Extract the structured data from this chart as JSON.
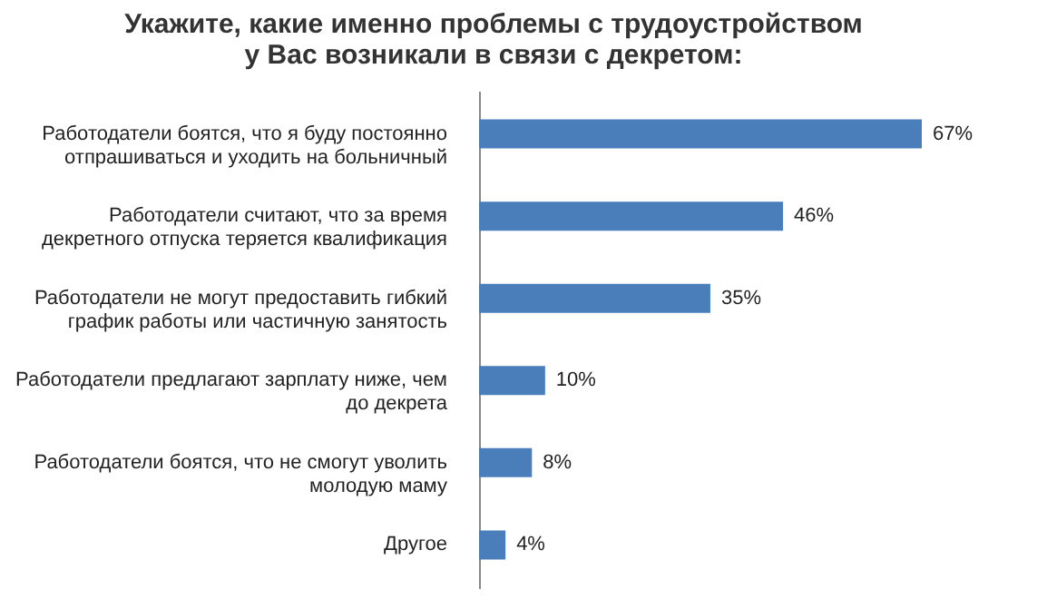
{
  "chart_data": {
    "type": "bar",
    "orientation": "horizontal",
    "title": [
      "Укажите, какие именно проблемы с трудоустройством",
      "у Вас возникали в связи с декретом:"
    ],
    "categories": [
      "Работодатели боятся, что я буду постоянно отпрашиваться и уходить на больничный",
      "Работодатели считают, что за время декретного отпуска теряется квалификация",
      "Работодатели не могут предоставить гибкий график работы или частичную занятость",
      "Работодатели предлагают зарплату ниже, чем до декрета",
      "Работодатели боятся, что не смогут уволить молодую маму",
      "Другое"
    ],
    "values": [
      67,
      46,
      35,
      10,
      8,
      4
    ],
    "value_labels": [
      "67%",
      "46%",
      "35%",
      "10%",
      "8%",
      "4%"
    ],
    "color": "#4a7ebb",
    "tick_labels": "y"
  }
}
